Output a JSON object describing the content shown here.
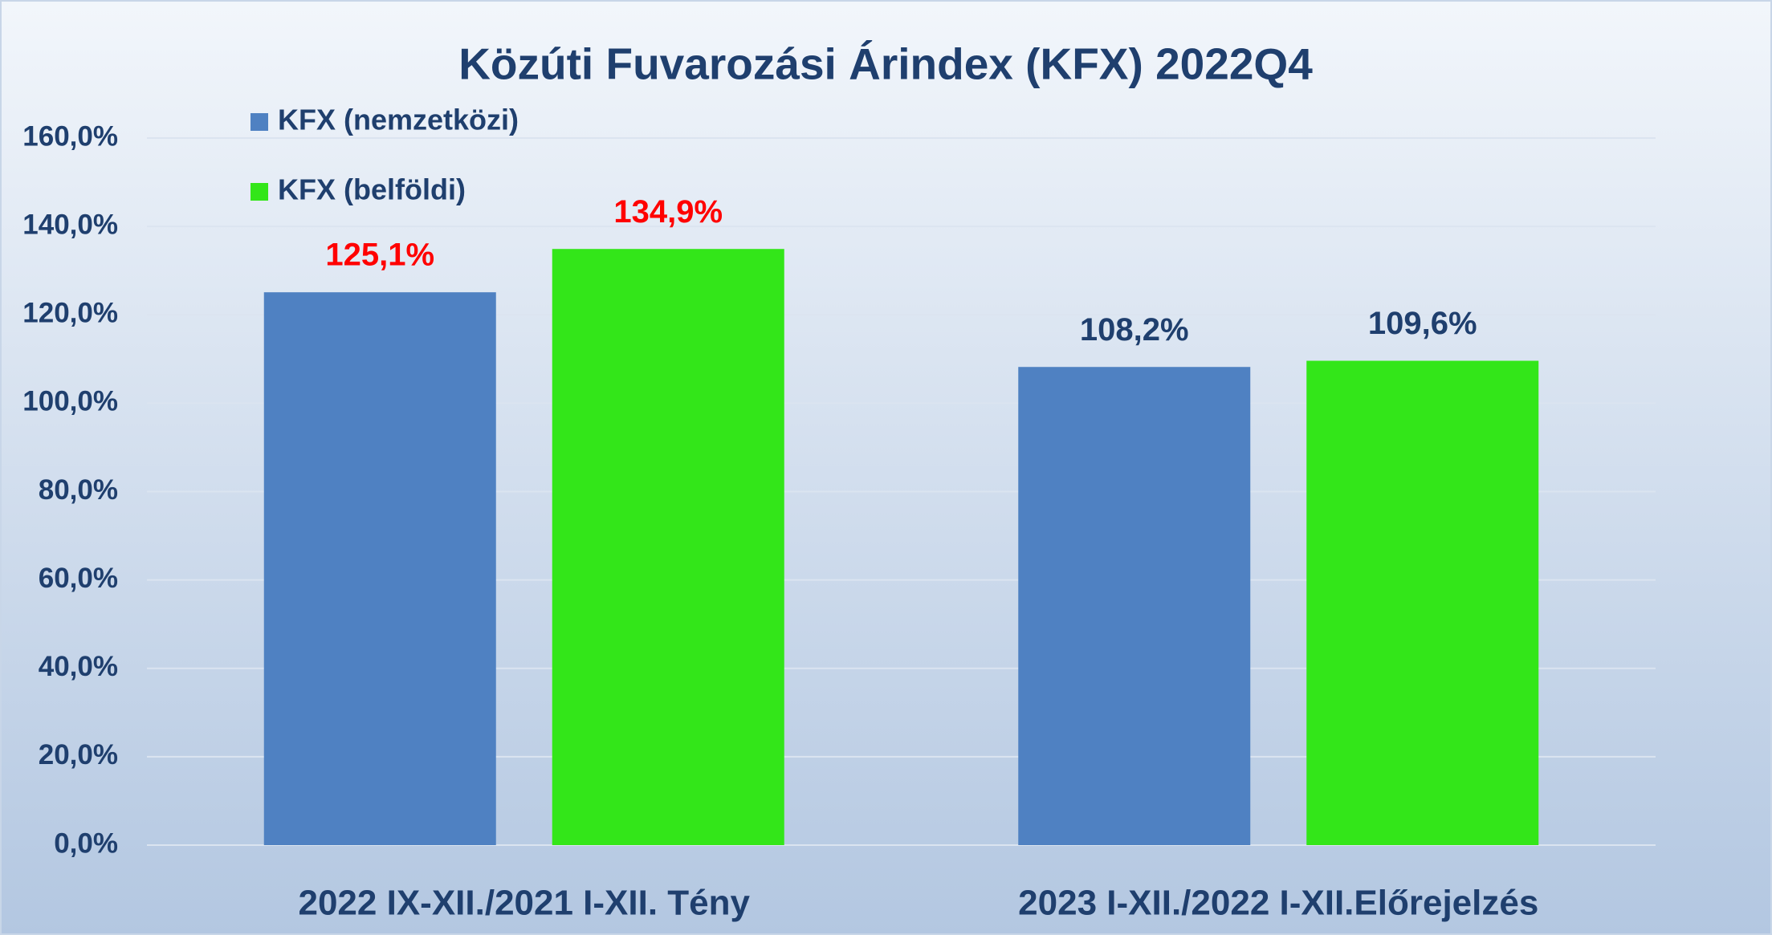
{
  "chart_data": {
    "type": "bar",
    "title": "Közúti Fuvarozási Árindex (KFX) 2022Q4",
    "categories": [
      "2022 IX-XII./2021 I-XII. Tény",
      "2023 I-XII./2022 I-XII.Előrejelzés"
    ],
    "series": [
      {
        "name": "KFX (nemzetközi)",
        "color": "#4f81c2",
        "values": [
          125.1,
          108.2
        ],
        "value_labels": [
          "125,1%",
          "108,2%"
        ]
      },
      {
        "name": "KFX (belföldi)",
        "color": "#33e619",
        "values": [
          134.9,
          109.6
        ],
        "value_labels": [
          "134,9%",
          "109,6%"
        ]
      }
    ],
    "value_label_colors": [
      "#ff0000",
      "#1f3f6e"
    ],
    "ylim": [
      0,
      160
    ],
    "yticks": [
      {
        "value": 0,
        "label": "0,0%"
      },
      {
        "value": 20,
        "label": "20,0%"
      },
      {
        "value": 40,
        "label": "40,0%"
      },
      {
        "value": 60,
        "label": "60,0%"
      },
      {
        "value": 80,
        "label": "80,0%"
      },
      {
        "value": 100,
        "label": "100,0%"
      },
      {
        "value": 120,
        "label": "120,0%"
      },
      {
        "value": 140,
        "label": "140,0%"
      },
      {
        "value": 160,
        "label": "160,0%"
      }
    ],
    "grid": true
  }
}
